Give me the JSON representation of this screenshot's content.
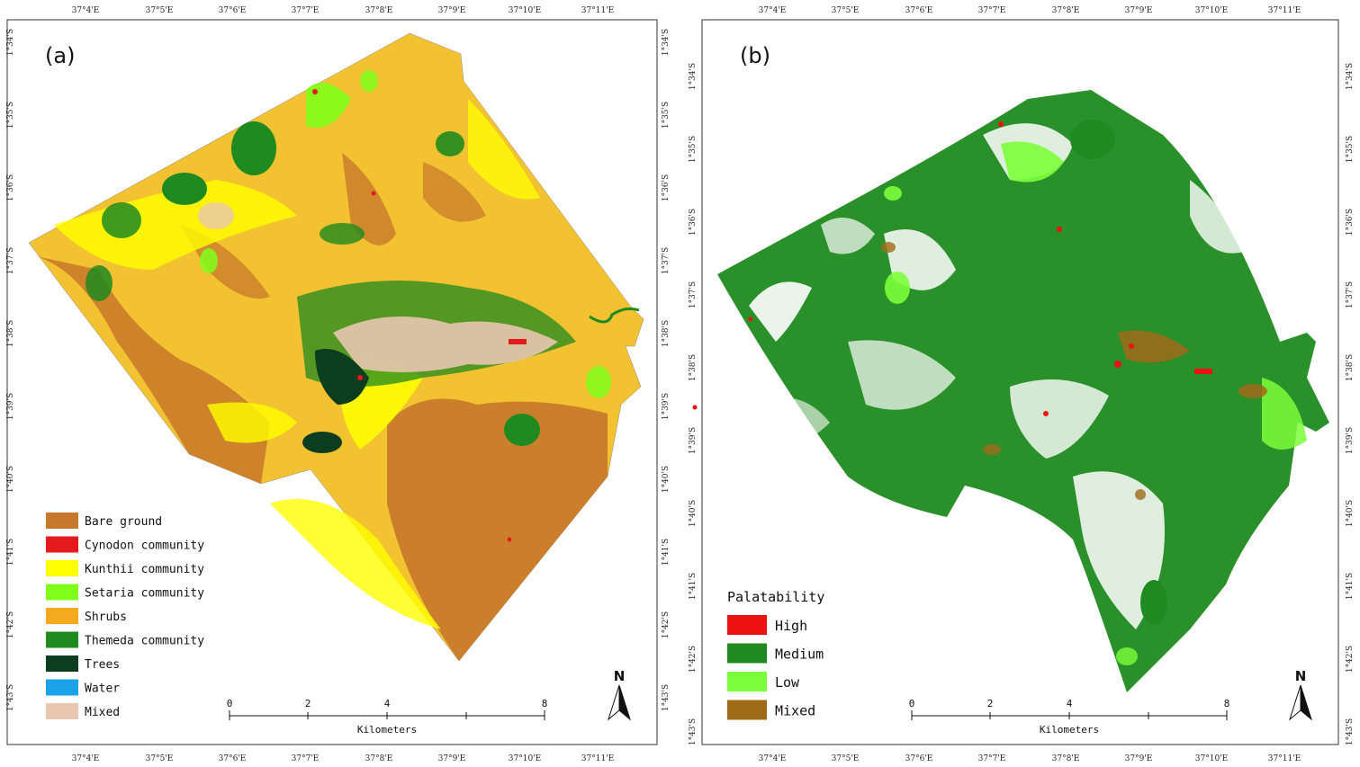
{
  "panels": [
    {
      "id": "a",
      "label": "(a)",
      "legend_title": "",
      "legend": [
        {
          "label": "Bare ground",
          "color": "#c8782a"
        },
        {
          "label": "Cynodon community",
          "color": "#e41a1c"
        },
        {
          "label": "Kunthii community",
          "color": "#ffff00"
        },
        {
          "label": "Setaria community",
          "color": "#7fff1a"
        },
        {
          "label": "Shrubs",
          "color": "#f5a91d"
        },
        {
          "label": "Themeda community",
          "color": "#1f8a1f"
        },
        {
          "label": "Trees",
          "color": "#0b3d1e"
        },
        {
          "label": "Water",
          "color": "#1aa3e8"
        },
        {
          "label": "Mixed",
          "color": "#e8c6b0"
        }
      ]
    },
    {
      "id": "b",
      "label": "(b)",
      "legend_title": "Palatability",
      "legend": [
        {
          "label": "High",
          "color": "#ee1111"
        },
        {
          "label": "Medium",
          "color": "#1f8a1f"
        },
        {
          "label": "Low",
          "color": "#7cff3a"
        },
        {
          "label": "Mixed",
          "color": "#a06a18"
        }
      ]
    }
  ],
  "lon_ticks": [
    "37°4'E",
    "37°5'E",
    "37°6'E",
    "37°7'E",
    "37°8'E",
    "37°9'E",
    "37°10'E",
    "37°11'E"
  ],
  "lat_ticks": [
    "1°34'S",
    "1°35'S",
    "1°36'S",
    "1°37'S",
    "1°38'S",
    "1°39'S",
    "1°40'S",
    "1°41'S",
    "1°42'S",
    "1°43'S"
  ],
  "scale_bar": {
    "ticks": [
      "0",
      "2",
      "4",
      "8"
    ],
    "units": "Kilometers"
  },
  "north_label": "N"
}
